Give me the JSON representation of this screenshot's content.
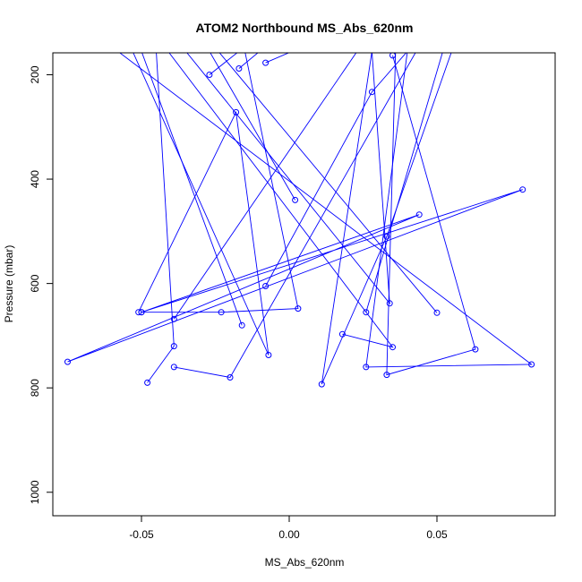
{
  "chart_data": {
    "type": "line",
    "title": "ATOM2 Northbound MS_Abs_620nm",
    "xlabel": "MS_Abs_620nm",
    "ylabel": "Pressure (mbar)",
    "xlim": [
      -0.08,
      0.09
    ],
    "ylim": [
      1045,
      158
    ],
    "y_inverted": true,
    "x_ticks": [
      -0.05,
      0.0,
      0.05
    ],
    "x_tick_labels": [
      "-0.05",
      "0.00",
      "0.05"
    ],
    "y_ticks": [
      200,
      400,
      600,
      800,
      1000
    ],
    "y_tick_labels": [
      "200",
      "400",
      "600",
      "800",
      "1000"
    ],
    "grid": false,
    "legend": "none",
    "series": [
      {
        "color": "#0000ff",
        "marker": "open-circle",
        "line": true,
        "points": [
          {
            "x": -0.05,
            "y": 655
          },
          {
            "x": 0.044,
            "y": 468
          },
          {
            "x": -0.075,
            "y": 750
          },
          {
            "x": 0.079,
            "y": 420
          },
          {
            "x": -0.05,
            "y": 655
          },
          {
            "x": -0.023,
            "y": 655
          },
          {
            "x": 0.003,
            "y": 648
          },
          {
            "x": -0.015,
            "y": 155
          }
        ]
      },
      {
        "color": "#0000ff",
        "marker": "open-circle",
        "line": true,
        "points": [
          {
            "x": -0.035,
            "y": 155
          },
          {
            "x": 0.034,
            "y": 638
          },
          {
            "x": 0.028,
            "y": 155
          },
          {
            "x": 0.011,
            "y": 793
          },
          {
            "x": 0.033,
            "y": 510
          },
          {
            "x": 0.055,
            "y": 155
          }
        ]
      },
      {
        "color": "#0000ff",
        "marker": "open-circle",
        "line": true,
        "points": [
          {
            "x": -0.058,
            "y": 155
          },
          {
            "x": 0.082,
            "y": 755
          },
          {
            "x": 0.026,
            "y": 760
          },
          {
            "x": 0.04,
            "y": 155
          }
        ]
      },
      {
        "color": "#0000ff",
        "marker": "open-circle",
        "line": true,
        "points": [
          {
            "x": -0.051,
            "y": 655
          },
          {
            "x": -0.018,
            "y": 272
          },
          {
            "x": -0.007,
            "y": 737
          },
          {
            "x": -0.053,
            "y": 155
          }
        ]
      },
      {
        "color": "#0000ff",
        "marker": "open-circle",
        "line": true,
        "points": [
          {
            "x": -0.048,
            "y": 790
          },
          {
            "x": -0.039,
            "y": 720
          },
          {
            "x": -0.045,
            "y": 155
          }
        ]
      },
      {
        "color": "#0000ff",
        "marker": "open-circle",
        "line": true,
        "points": [
          {
            "x": -0.039,
            "y": 760
          },
          {
            "x": -0.02,
            "y": 780
          },
          {
            "x": 0.043,
            "y": 155
          }
        ]
      },
      {
        "color": "#0000ff",
        "marker": "open-circle",
        "line": true,
        "points": [
          {
            "x": -0.039,
            "y": 668
          },
          {
            "x": 0.023,
            "y": 155
          }
        ]
      },
      {
        "color": "#0000ff",
        "marker": "open-circle",
        "line": true,
        "points": [
          {
            "x": -0.016,
            "y": 680
          },
          {
            "x": -0.05,
            "y": 155
          }
        ]
      },
      {
        "color": "#0000ff",
        "marker": "open-circle",
        "line": true,
        "points": [
          {
            "x": -0.008,
            "y": 605
          },
          {
            "x": 0.028,
            "y": 233
          },
          {
            "x": 0.04,
            "y": 155
          }
        ]
      },
      {
        "color": "#0000ff",
        "marker": "open-circle",
        "line": true,
        "points": [
          {
            "x": 0.002,
            "y": 440
          },
          {
            "x": -0.027,
            "y": 155
          }
        ]
      },
      {
        "color": "#0000ff",
        "marker": "open-circle",
        "line": true,
        "points": [
          {
            "x": 0.05,
            "y": 656
          },
          {
            "x": -0.024,
            "y": 155
          }
        ]
      },
      {
        "color": "#0000ff",
        "marker": "open-circle",
        "line": true,
        "points": [
          {
            "x": 0.035,
            "y": 163
          },
          {
            "x": 0.063,
            "y": 726
          },
          {
            "x": 0.033,
            "y": 775
          },
          {
            "x": 0.036,
            "y": 155
          }
        ]
      },
      {
        "color": "#0000ff",
        "marker": "open-circle",
        "line": true,
        "points": [
          {
            "x": -0.027,
            "y": 200
          },
          {
            "x": -0.017,
            "y": 155
          }
        ]
      },
      {
        "color": "#0000ff",
        "marker": "open-circle",
        "line": true,
        "points": [
          {
            "x": -0.017,
            "y": 188
          },
          {
            "x": -0.01,
            "y": 155
          }
        ]
      },
      {
        "color": "#0000ff",
        "marker": "open-circle",
        "line": true,
        "points": [
          {
            "x": -0.008,
            "y": 177
          },
          {
            "x": 0.001,
            "y": 155
          }
        ]
      },
      {
        "color": "#0000ff",
        "marker": "open-circle",
        "line": true,
        "points": [
          {
            "x": 0.018,
            "y": 697
          },
          {
            "x": 0.035,
            "y": 722
          },
          {
            "x": -0.041,
            "y": 155
          }
        ]
      },
      {
        "color": "#0000ff",
        "marker": "open-circle",
        "line": true,
        "points": [
          {
            "x": 0.026,
            "y": 655
          },
          {
            "x": 0.052,
            "y": 155
          }
        ]
      }
    ]
  }
}
